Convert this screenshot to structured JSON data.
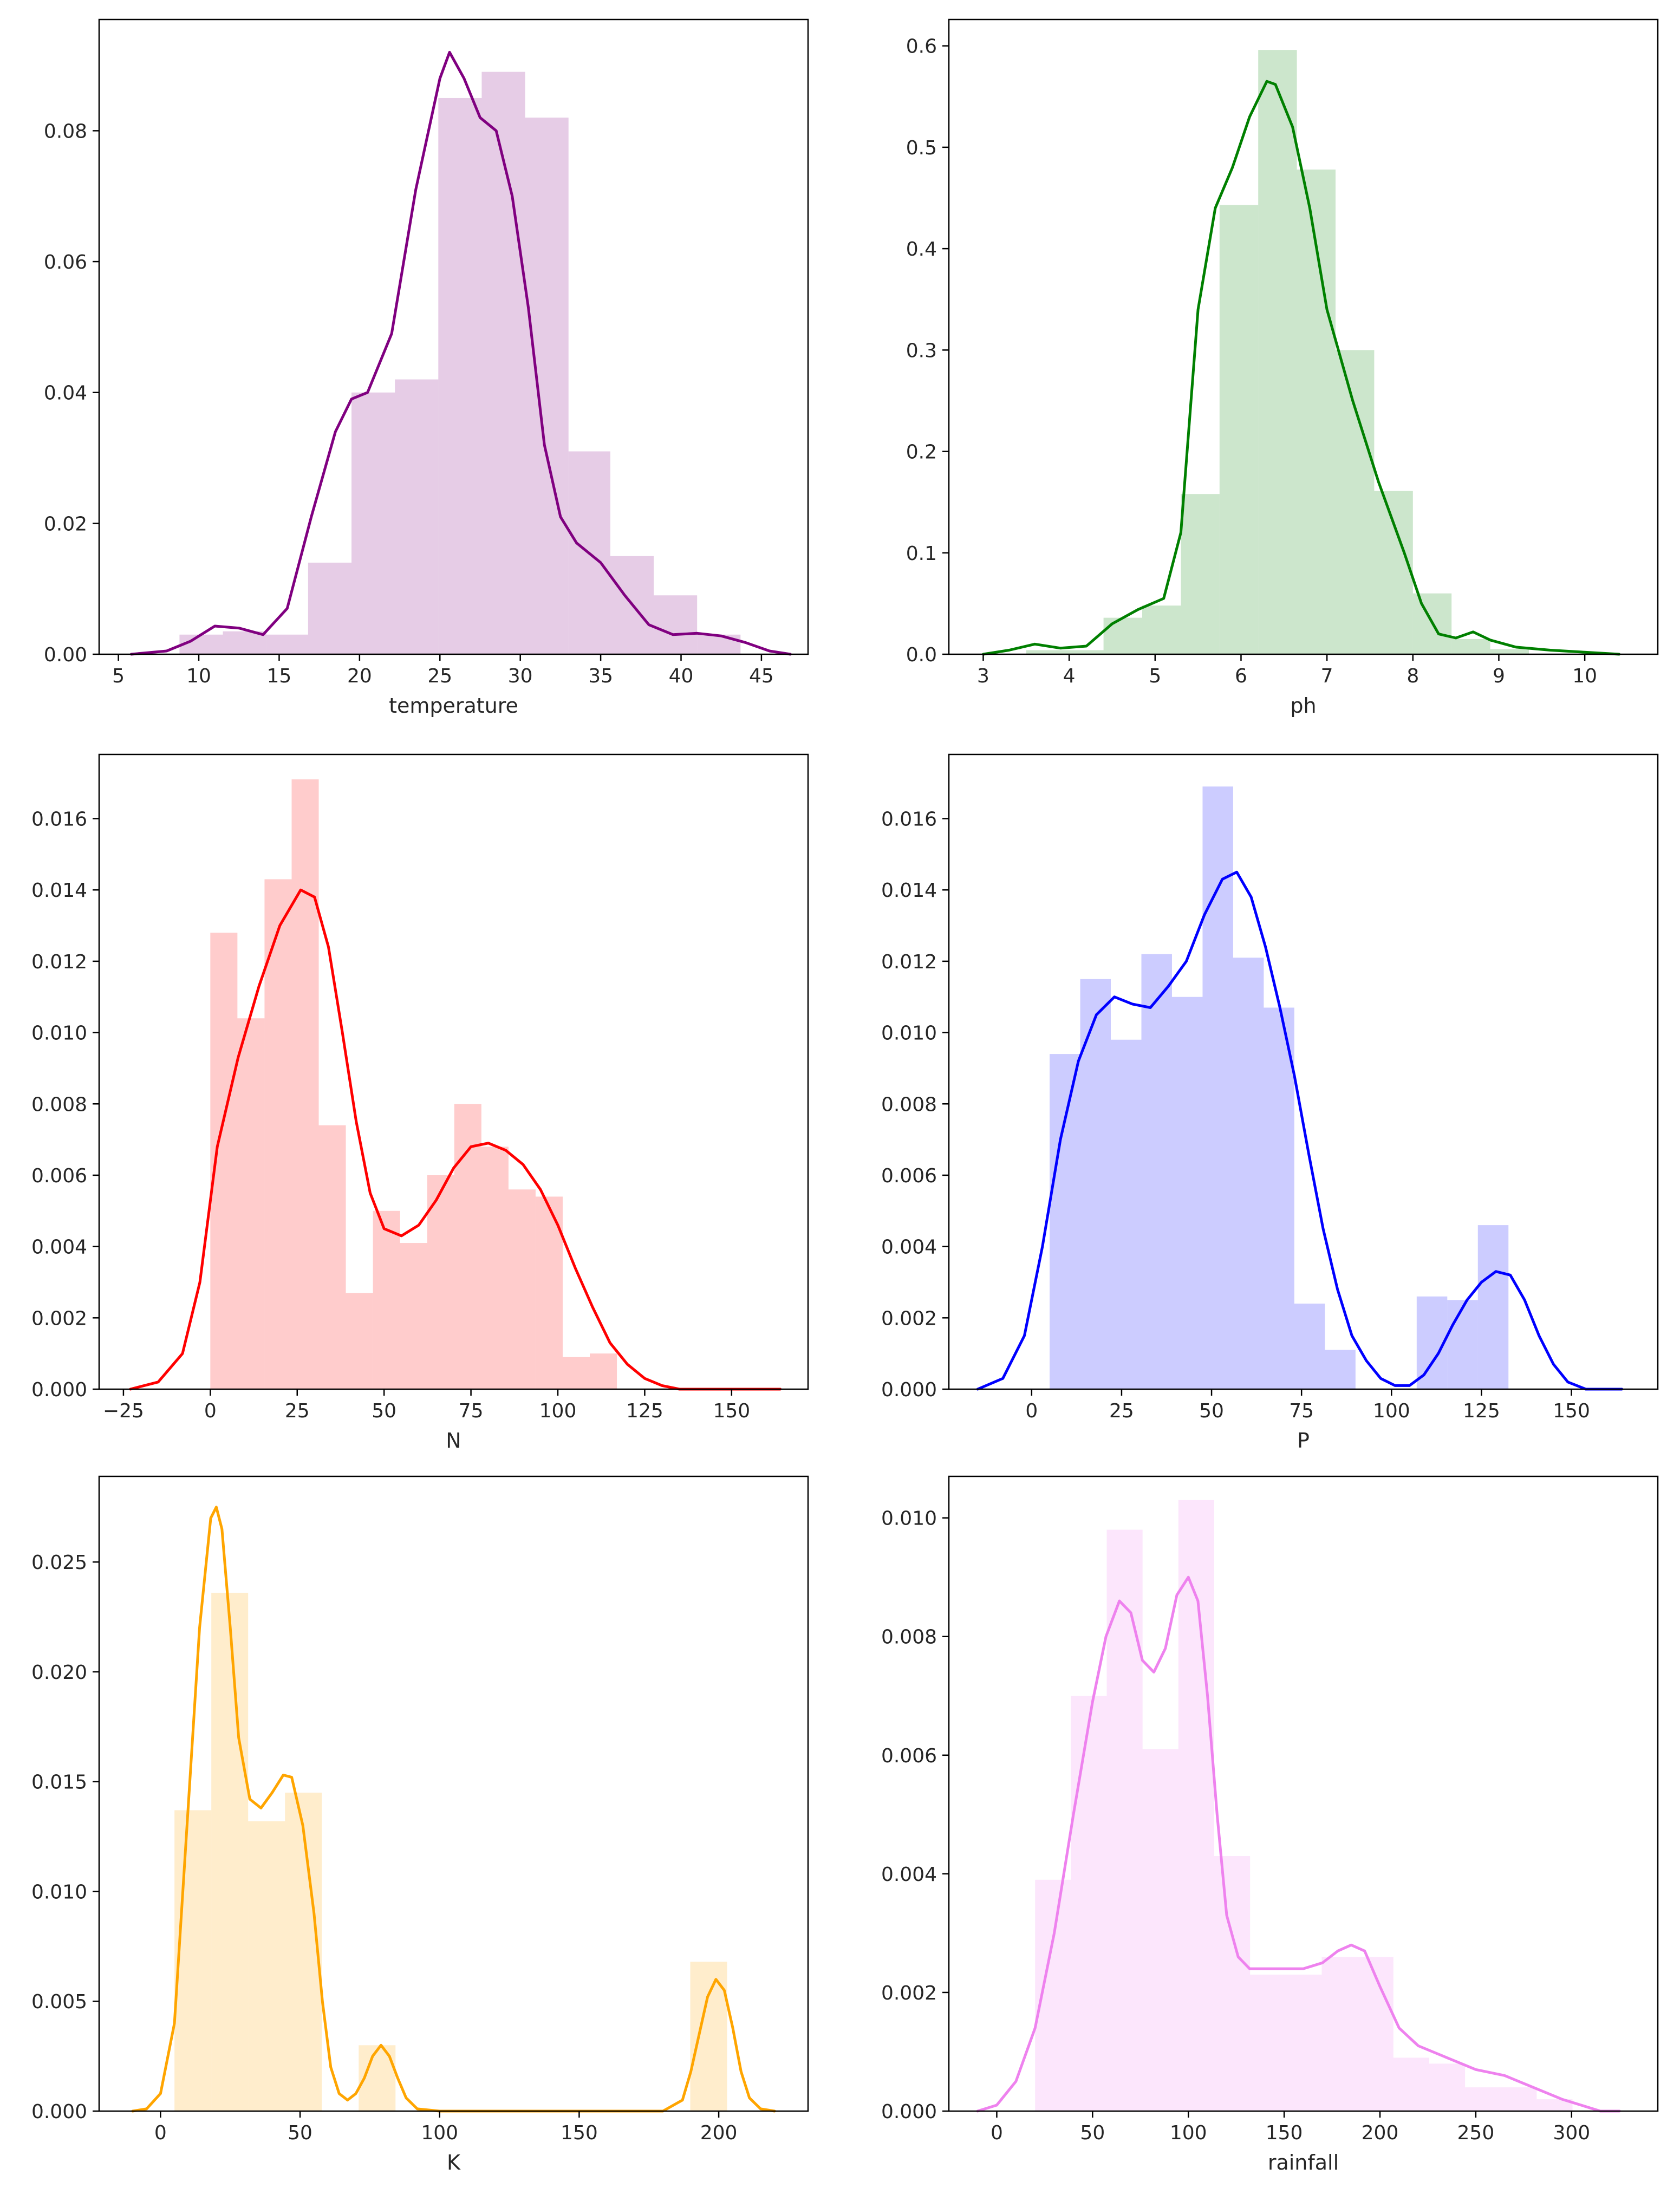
{
  "figure": {
    "layout": "3x2 grid of distribution plots (histogram + KDE)"
  },
  "chart_data": [
    {
      "type": "histogram+kde",
      "xlabel": "temperature",
      "ylabel": "",
      "color": "#800080",
      "xlim": [
        3.8,
        47.9
      ],
      "ylim": [
        0,
        0.097
      ],
      "xticks": [
        5,
        10,
        15,
        20,
        25,
        30,
        35,
        40,
        45
      ],
      "yticks": [
        0.0,
        0.02,
        0.04,
        0.06,
        0.08
      ],
      "ytick_decimals": 2,
      "bins": [
        {
          "x0": 8.8,
          "x1": 11.5,
          "y": 0.003
        },
        {
          "x0": 11.5,
          "x1": 14.2,
          "y": 0.0035
        },
        {
          "x0": 14.2,
          "x1": 16.8,
          "y": 0.003
        },
        {
          "x0": 16.8,
          "x1": 19.5,
          "y": 0.014
        },
        {
          "x0": 19.5,
          "x1": 22.2,
          "y": 0.04
        },
        {
          "x0": 22.2,
          "x1": 24.9,
          "y": 0.042
        },
        {
          "x0": 24.9,
          "x1": 27.6,
          "y": 0.085
        },
        {
          "x0": 27.6,
          "x1": 30.3,
          "y": 0.089
        },
        {
          "x0": 30.3,
          "x1": 33.0,
          "y": 0.082
        },
        {
          "x0": 33.0,
          "x1": 35.6,
          "y": 0.031
        },
        {
          "x0": 35.6,
          "x1": 38.3,
          "y": 0.015
        },
        {
          "x0": 38.3,
          "x1": 41.0,
          "y": 0.009
        },
        {
          "x0": 41.0,
          "x1": 43.7,
          "y": 0.003
        }
      ],
      "kde": {
        "x": [
          5.8,
          8,
          9.5,
          11,
          12.5,
          14,
          15.5,
          17,
          18.5,
          19.5,
          20.5,
          22,
          23.5,
          25,
          25.6,
          26.5,
          27.5,
          28.5,
          29.5,
          30.5,
          31.5,
          32.5,
          33.5,
          35,
          36.5,
          38,
          39.5,
          41,
          42.5,
          44,
          45.5,
          46.8
        ],
        "y": [
          0,
          0.0005,
          0.002,
          0.0043,
          0.004,
          0.003,
          0.007,
          0.021,
          0.034,
          0.039,
          0.04,
          0.049,
          0.071,
          0.088,
          0.092,
          0.088,
          0.082,
          0.08,
          0.07,
          0.053,
          0.032,
          0.021,
          0.017,
          0.014,
          0.009,
          0.0045,
          0.003,
          0.0032,
          0.0028,
          0.0018,
          0.0005,
          0
        ]
      }
    },
    {
      "type": "histogram+kde",
      "xlabel": "ph",
      "ylabel": "",
      "color": "#008000",
      "xlim": [
        2.6,
        10.85
      ],
      "ylim": [
        0,
        0.626
      ],
      "xticks": [
        3,
        4,
        5,
        6,
        7,
        8,
        9,
        10
      ],
      "yticks": [
        0.0,
        0.1,
        0.2,
        0.3,
        0.4,
        0.5,
        0.6
      ],
      "ytick_decimals": 1,
      "bins": [
        {
          "x0": 3.5,
          "x1": 3.95,
          "y": 0.004
        },
        {
          "x0": 3.95,
          "x1": 4.4,
          "y": 0.004
        },
        {
          "x0": 4.4,
          "x1": 4.85,
          "y": 0.036
        },
        {
          "x0": 4.85,
          "x1": 5.3,
          "y": 0.048
        },
        {
          "x0": 5.3,
          "x1": 5.75,
          "y": 0.158
        },
        {
          "x0": 5.75,
          "x1": 6.2,
          "y": 0.443
        },
        {
          "x0": 6.2,
          "x1": 6.65,
          "y": 0.596
        },
        {
          "x0": 6.65,
          "x1": 7.1,
          "y": 0.478
        },
        {
          "x0": 7.1,
          "x1": 7.55,
          "y": 0.3
        },
        {
          "x0": 7.55,
          "x1": 8.0,
          "y": 0.161
        },
        {
          "x0": 8.0,
          "x1": 8.45,
          "y": 0.06
        },
        {
          "x0": 8.45,
          "x1": 8.9,
          "y": 0.015
        },
        {
          "x0": 8.9,
          "x1": 9.35,
          "y": 0.005
        }
      ],
      "kde": {
        "x": [
          3.0,
          3.3,
          3.6,
          3.9,
          4.2,
          4.5,
          4.8,
          5.1,
          5.3,
          5.5,
          5.7,
          5.9,
          6.1,
          6.3,
          6.4,
          6.6,
          6.8,
          7.0,
          7.3,
          7.6,
          7.9,
          8.1,
          8.3,
          8.5,
          8.7,
          8.9,
          9.2,
          9.6,
          10.0,
          10.4
        ],
        "y": [
          0,
          0.004,
          0.01,
          0.006,
          0.008,
          0.03,
          0.044,
          0.055,
          0.12,
          0.34,
          0.44,
          0.48,
          0.53,
          0.565,
          0.562,
          0.52,
          0.44,
          0.34,
          0.25,
          0.17,
          0.1,
          0.05,
          0.02,
          0.016,
          0.022,
          0.014,
          0.007,
          0.004,
          0.002,
          0
        ]
      }
    },
    {
      "type": "histogram+kde",
      "xlabel": "N",
      "ylabel": "",
      "color": "#ff0000",
      "xlim": [
        -32,
        172
      ],
      "ylim": [
        0,
        0.0178
      ],
      "xticks": [
        -25,
        0,
        25,
        50,
        75,
        100,
        125,
        150
      ],
      "yticks": [
        0.0,
        0.002,
        0.004,
        0.006,
        0.008,
        0.01,
        0.012,
        0.014,
        0.016
      ],
      "ytick_decimals": 3,
      "bins": [
        {
          "x0": 0,
          "x1": 7.8,
          "y": 0.0128
        },
        {
          "x0": 7.8,
          "x1": 15.6,
          "y": 0.0104
        },
        {
          "x0": 15.6,
          "x1": 23.4,
          "y": 0.0143
        },
        {
          "x0": 23.4,
          "x1": 31.2,
          "y": 0.0171
        },
        {
          "x0": 31.2,
          "x1": 39.0,
          "y": 0.0074
        },
        {
          "x0": 39.0,
          "x1": 46.8,
          "y": 0.0027
        },
        {
          "x0": 46.8,
          "x1": 54.6,
          "y": 0.005
        },
        {
          "x0": 54.6,
          "x1": 62.4,
          "y": 0.0041
        },
        {
          "x0": 62.4,
          "x1": 70.2,
          "y": 0.006
        },
        {
          "x0": 70.2,
          "x1": 78.0,
          "y": 0.008
        },
        {
          "x0": 78.0,
          "x1": 85.8,
          "y": 0.0068
        },
        {
          "x0": 85.8,
          "x1": 93.6,
          "y": 0.0056
        },
        {
          "x0": 93.6,
          "x1": 101.4,
          "y": 0.0054
        },
        {
          "x0": 101.4,
          "x1": 109.2,
          "y": 0.0009
        },
        {
          "x0": 109.2,
          "x1": 117.0,
          "y": 0.001
        }
      ],
      "kde": {
        "x": [
          -23,
          -15,
          -8,
          -3,
          2,
          8,
          14,
          20,
          26,
          30,
          34,
          38,
          42,
          46,
          50,
          55,
          60,
          65,
          70,
          75,
          80,
          85,
          90,
          95,
          100,
          105,
          110,
          115,
          120,
          125,
          130,
          135,
          140,
          145,
          150,
          157,
          164
        ],
        "y": [
          0,
          0.0002,
          0.001,
          0.003,
          0.0068,
          0.0093,
          0.0113,
          0.013,
          0.014,
          0.0138,
          0.0124,
          0.01,
          0.0075,
          0.0055,
          0.0045,
          0.0043,
          0.0046,
          0.0053,
          0.0062,
          0.0068,
          0.0069,
          0.0067,
          0.0063,
          0.0056,
          0.0046,
          0.0034,
          0.0023,
          0.0013,
          0.0007,
          0.0003,
          0.0001,
          0,
          0,
          0,
          0,
          0,
          0
        ]
      }
    },
    {
      "type": "histogram+kde",
      "xlabel": "P",
      "ylabel": "",
      "color": "#0000ff",
      "xlim": [
        -23,
        174
      ],
      "ylim": [
        0,
        0.0178
      ],
      "xticks": [
        0,
        25,
        50,
        75,
        100,
        125,
        150
      ],
      "yticks": [
        0.0,
        0.002,
        0.004,
        0.006,
        0.008,
        0.01,
        0.012,
        0.014,
        0.016
      ],
      "ytick_decimals": 3,
      "bins": [
        {
          "x0": 5,
          "x1": 13.5,
          "y": 0.0094
        },
        {
          "x0": 13.5,
          "x1": 22,
          "y": 0.0115
        },
        {
          "x0": 22,
          "x1": 30.5,
          "y": 0.0098
        },
        {
          "x0": 30.5,
          "x1": 39,
          "y": 0.0122
        },
        {
          "x0": 39,
          "x1": 47.5,
          "y": 0.011
        },
        {
          "x0": 47.5,
          "x1": 56,
          "y": 0.0169
        },
        {
          "x0": 56,
          "x1": 64.5,
          "y": 0.0121
        },
        {
          "x0": 64.5,
          "x1": 73,
          "y": 0.0107
        },
        {
          "x0": 73,
          "x1": 81.5,
          "y": 0.0024
        },
        {
          "x0": 81.5,
          "x1": 90,
          "y": 0.0011
        },
        {
          "x0": 90,
          "x1": 98.5,
          "y": 0
        },
        {
          "x0": 98.5,
          "x1": 107,
          "y": 0
        },
        {
          "x0": 107,
          "x1": 115.5,
          "y": 0.0026
        },
        {
          "x0": 115.5,
          "x1": 124,
          "y": 0.0025
        },
        {
          "x0": 124,
          "x1": 132.5,
          "y": 0.0046
        }
      ],
      "kde": {
        "x": [
          -15,
          -8,
          -2,
          3,
          8,
          13,
          18,
          23,
          28,
          33,
          38,
          43,
          48,
          53,
          57,
          61,
          65,
          69,
          73,
          77,
          81,
          85,
          89,
          93,
          97,
          101,
          105,
          109,
          113,
          117,
          121,
          125,
          129,
          133,
          137,
          141,
          145,
          149,
          154,
          159,
          164
        ],
        "y": [
          0,
          0.0003,
          0.0015,
          0.004,
          0.007,
          0.0092,
          0.0105,
          0.011,
          0.0108,
          0.0107,
          0.0113,
          0.012,
          0.0133,
          0.0143,
          0.0145,
          0.0138,
          0.0124,
          0.0107,
          0.0088,
          0.0066,
          0.0045,
          0.0028,
          0.0015,
          0.0008,
          0.0003,
          0.0001,
          0.0001,
          0.0004,
          0.001,
          0.0018,
          0.0025,
          0.003,
          0.0033,
          0.0032,
          0.0025,
          0.0015,
          0.0007,
          0.0002,
          0,
          0,
          0
        ]
      }
    },
    {
      "type": "histogram+kde",
      "xlabel": "K",
      "ylabel": "",
      "color": "#ffa500",
      "xlim": [
        -22,
        232
      ],
      "ylim": [
        0,
        0.0289
      ],
      "xticks": [
        0,
        50,
        100,
        150,
        200
      ],
      "yticks": [
        0.0,
        0.005,
        0.01,
        0.015,
        0.02,
        0.025
      ],
      "ytick_decimals": 3,
      "bins": [
        {
          "x0": 5,
          "x1": 18.2,
          "y": 0.0137
        },
        {
          "x0": 18.2,
          "x1": 31.4,
          "y": 0.0236
        },
        {
          "x0": 31.4,
          "x1": 44.6,
          "y": 0.0132
        },
        {
          "x0": 44.6,
          "x1": 57.8,
          "y": 0.0145
        },
        {
          "x0": 57.8,
          "x1": 71,
          "y": 0
        },
        {
          "x0": 71,
          "x1": 84.2,
          "y": 0.003
        },
        {
          "x0": 84.2,
          "x1": 97.4,
          "y": 0
        },
        {
          "x0": 97.4,
          "x1": 110.6,
          "y": 0
        },
        {
          "x0": 110.6,
          "x1": 123.8,
          "y": 0
        },
        {
          "x0": 123.8,
          "x1": 137,
          "y": 0
        },
        {
          "x0": 137,
          "x1": 150.2,
          "y": 0
        },
        {
          "x0": 150.2,
          "x1": 163.4,
          "y": 0
        },
        {
          "x0": 163.4,
          "x1": 176.6,
          "y": 0
        },
        {
          "x0": 176.6,
          "x1": 189.8,
          "y": 0
        },
        {
          "x0": 189.8,
          "x1": 203,
          "y": 0.0068
        }
      ],
      "kde": {
        "x": [
          -10,
          -5,
          0,
          5,
          10,
          14,
          18,
          20,
          22,
          25,
          28,
          32,
          36,
          40,
          44,
          47,
          51,
          55,
          58,
          61,
          64,
          67,
          70,
          73,
          76,
          79,
          82,
          85,
          88,
          92,
          100,
          120,
          150,
          180,
          187,
          190,
          193,
          196,
          199,
          202,
          205,
          208,
          211,
          215,
          220
        ],
        "y": [
          0,
          0.0001,
          0.0008,
          0.004,
          0.014,
          0.022,
          0.027,
          0.0275,
          0.0265,
          0.022,
          0.017,
          0.0142,
          0.0138,
          0.0145,
          0.0153,
          0.0152,
          0.013,
          0.009,
          0.005,
          0.002,
          0.0008,
          0.0005,
          0.0008,
          0.0015,
          0.0025,
          0.003,
          0.0025,
          0.0015,
          0.0006,
          0.0001,
          0,
          0,
          0,
          0,
          0.0005,
          0.0018,
          0.0035,
          0.0052,
          0.006,
          0.0055,
          0.0038,
          0.0018,
          0.0006,
          0.0001,
          0
        ]
      }
    },
    {
      "type": "histogram+kde",
      "xlabel": "rainfall",
      "ylabel": "",
      "color": "#ee82ee",
      "xlim": [
        -25,
        345
      ],
      "ylim": [
        0,
        0.0107
      ],
      "xticks": [
        0,
        50,
        100,
        150,
        200,
        250,
        300
      ],
      "yticks": [
        0.0,
        0.002,
        0.004,
        0.006,
        0.008,
        0.01
      ],
      "ytick_decimals": 3,
      "bins": [
        {
          "x0": 20,
          "x1": 38.7,
          "y": 0.0039
        },
        {
          "x0": 38.7,
          "x1": 57.4,
          "y": 0.007
        },
        {
          "x0": 57.4,
          "x1": 76.1,
          "y": 0.0098
        },
        {
          "x0": 76.1,
          "x1": 94.8,
          "y": 0.0061
        },
        {
          "x0": 94.8,
          "x1": 113.5,
          "y": 0.0103
        },
        {
          "x0": 113.5,
          "x1": 132.2,
          "y": 0.0043
        },
        {
          "x0": 132.2,
          "x1": 150.9,
          "y": 0.0023
        },
        {
          "x0": 150.9,
          "x1": 169.6,
          "y": 0.0023
        },
        {
          "x0": 169.6,
          "x1": 188.3,
          "y": 0.0026
        },
        {
          "x0": 188.3,
          "x1": 207,
          "y": 0.0026
        },
        {
          "x0": 207,
          "x1": 225.7,
          "y": 0.0009
        },
        {
          "x0": 225.7,
          "x1": 244.4,
          "y": 0.0008
        },
        {
          "x0": 244.4,
          "x1": 263.1,
          "y": 0.0004
        },
        {
          "x0": 263.1,
          "x1": 281.8,
          "y": 0.0004
        },
        {
          "x0": 281.8,
          "x1": 300.5,
          "y": 0.0002
        }
      ],
      "kde": {
        "x": [
          -10,
          0,
          10,
          20,
          30,
          40,
          50,
          57,
          64,
          70,
          76,
          82,
          88,
          94,
          100,
          105,
          110,
          115,
          120,
          126,
          132,
          140,
          150,
          160,
          170,
          178,
          185,
          192,
          200,
          210,
          220,
          235,
          250,
          265,
          280,
          295,
          305,
          315,
          325
        ],
        "y": [
          0,
          0.0001,
          0.0005,
          0.0014,
          0.003,
          0.005,
          0.0069,
          0.008,
          0.0086,
          0.0084,
          0.0076,
          0.0074,
          0.0078,
          0.0087,
          0.009,
          0.0086,
          0.007,
          0.005,
          0.0033,
          0.0026,
          0.0024,
          0.0024,
          0.0024,
          0.0024,
          0.0025,
          0.0027,
          0.0028,
          0.0027,
          0.0021,
          0.0014,
          0.0011,
          0.0009,
          0.0007,
          0.0006,
          0.0004,
          0.0002,
          0.0001,
          0,
          0
        ]
      }
    }
  ]
}
